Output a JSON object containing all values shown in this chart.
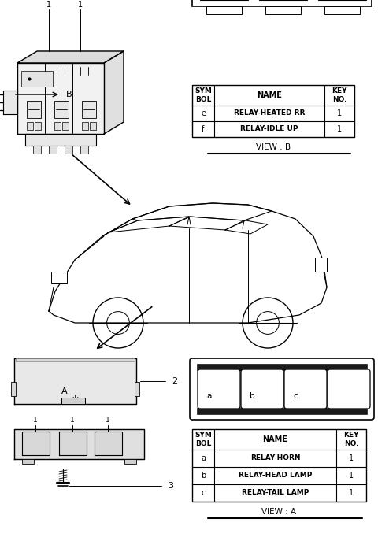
{
  "bg_color": "#ffffff",
  "table_b": {
    "rows": [
      [
        "e",
        "RELAY-HEATED RR",
        "1"
      ],
      [
        "f",
        "RELAY-IDLE UP",
        "1"
      ]
    ],
    "view_label": "VIEW : B"
  },
  "table_a": {
    "rows": [
      [
        "a",
        "RELAY-HORN",
        "1"
      ],
      [
        "b",
        "RELAY-HEAD LAMP",
        "1"
      ],
      [
        "c",
        "RELAY-TAIL LAMP",
        "1"
      ]
    ],
    "view_label": "VIEW : A"
  }
}
